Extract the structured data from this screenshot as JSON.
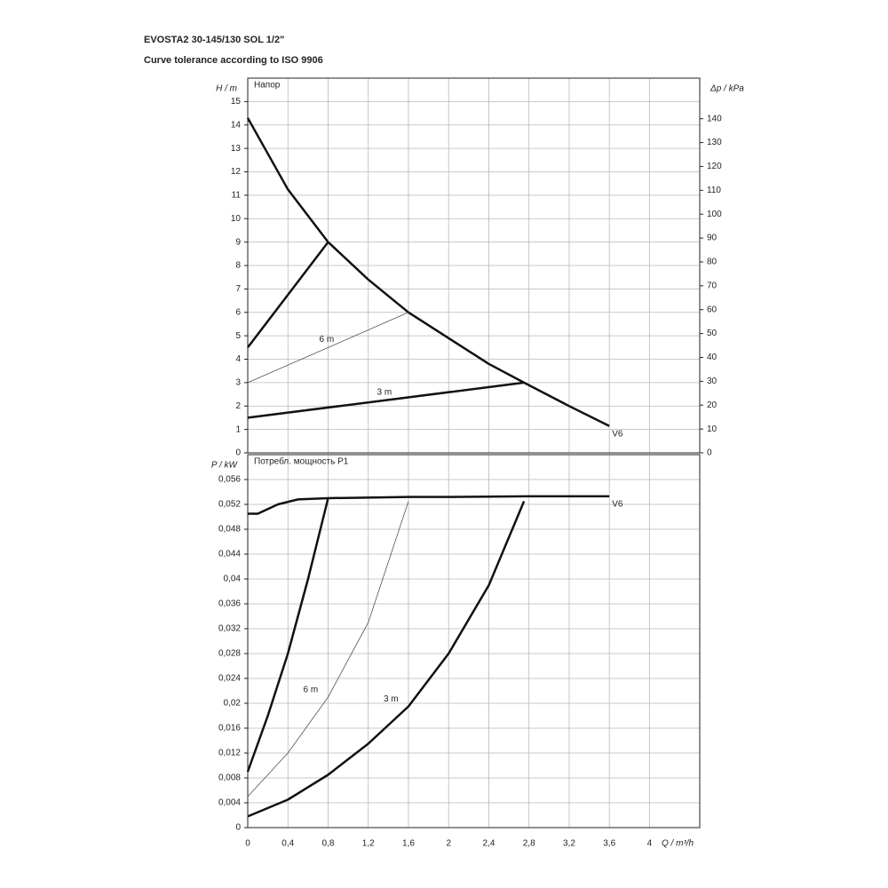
{
  "chart_data": [
    {
      "type": "line",
      "title": "EVOSTA2 30-145/130 SOL 1/2\"",
      "subtitle": "Curve tolerance according to ISO 9906",
      "panel_label": "Напор",
      "ylabel": "H / m",
      "y2label": "Δp / kPa",
      "xlim": [
        0,
        4.5
      ],
      "ylim": [
        0,
        16
      ],
      "yticks": [
        0,
        1,
        2,
        3,
        4,
        5,
        6,
        7,
        8,
        9,
        10,
        11,
        12,
        13,
        14,
        15
      ],
      "y2lim": [
        0,
        157
      ],
      "y2ticks": [
        0,
        10,
        20,
        30,
        40,
        50,
        60,
        70,
        80,
        90,
        100,
        110,
        120,
        130,
        140
      ],
      "grid": true,
      "series": [
        {
          "name": "V6",
          "color": "#111111",
          "width": 2.5,
          "x": [
            0,
            0.4,
            0.8,
            1.2,
            1.6,
            2.0,
            2.4,
            2.75,
            3.2,
            3.6
          ],
          "values": [
            14.3,
            11.25,
            9.0,
            7.4,
            6.0,
            4.9,
            3.8,
            3.0,
            2.0,
            1.15
          ]
        },
        {
          "color": "#111111",
          "width": 2.5,
          "x": [
            0,
            0.8
          ],
          "values": [
            4.5,
            9.0
          ]
        },
        {
          "name": "6 m",
          "color": "#555555",
          "width": 0.8,
          "x": [
            0,
            1.6
          ],
          "values": [
            3.0,
            6.0
          ]
        },
        {
          "name": "3 m",
          "color": "#111111",
          "width": 2.5,
          "x": [
            0,
            2.75
          ],
          "values": [
            1.5,
            3.0
          ]
        }
      ]
    },
    {
      "type": "line",
      "panel_label": "Потребл. мощность P1",
      "ylabel": "P / kW",
      "xlabel": "Q / m³/h",
      "xlim": [
        0,
        4.5
      ],
      "xticks": [
        0,
        {
          "value": 0.4,
          "label": "0,4"
        },
        {
          "value": 0.8,
          "label": "0,8"
        },
        {
          "value": 1.2,
          "label": "1,2"
        },
        {
          "value": 1.6,
          "label": "1,6"
        },
        2,
        {
          "value": 2.4,
          "label": "2,4"
        },
        {
          "value": 2.8,
          "label": "2,8"
        },
        {
          "value": 3.2,
          "label": "3,2"
        },
        {
          "value": 3.6,
          "label": "3,6"
        },
        4
      ],
      "ylim": [
        0,
        0.06
      ],
      "yticks": [
        0,
        {
          "value": 0.004,
          "label": "0,004"
        },
        {
          "value": 0.008,
          "label": "0,008"
        },
        {
          "value": 0.012,
          "label": "0,012"
        },
        {
          "value": 0.016,
          "label": "0,016"
        },
        {
          "value": 0.02,
          "label": "0,02"
        },
        {
          "value": 0.024,
          "label": "0,024"
        },
        {
          "value": 0.028,
          "label": "0,028"
        },
        {
          "value": 0.032,
          "label": "0,032"
        },
        {
          "value": 0.036,
          "label": "0,036"
        },
        {
          "value": 0.04,
          "label": "0,04"
        },
        {
          "value": 0.044,
          "label": "0,044"
        },
        {
          "value": 0.048,
          "label": "0,048"
        },
        {
          "value": 0.052,
          "label": "0,052"
        },
        {
          "value": 0.056,
          "label": "0,056"
        }
      ],
      "grid": true,
      "series": [
        {
          "name": "V6",
          "color": "#111111",
          "width": 2.5,
          "x": [
            0,
            0.1,
            0.3,
            0.5,
            0.8,
            1.6,
            2.0,
            2.8,
            3.6
          ],
          "values": [
            0.0505,
            0.0505,
            0.052,
            0.0528,
            0.053,
            0.0532,
            0.0532,
            0.0533,
            0.0533
          ]
        },
        {
          "color": "#111111",
          "width": 2.5,
          "x": [
            0,
            0.2,
            0.4,
            0.6,
            0.8
          ],
          "values": [
            0.009,
            0.018,
            0.028,
            0.04,
            0.053
          ]
        },
        {
          "name": "6 m",
          "color": "#555555",
          "width": 0.8,
          "x": [
            0,
            0.4,
            0.8,
            1.2,
            1.6
          ],
          "values": [
            0.005,
            0.012,
            0.021,
            0.033,
            0.0525
          ]
        },
        {
          "name": "3 m",
          "color": "#111111",
          "width": 2.5,
          "x": [
            0,
            0.4,
            0.8,
            1.2,
            1.6,
            2.0,
            2.4,
            2.75
          ],
          "values": [
            0.0018,
            0.0045,
            0.0085,
            0.0135,
            0.0195,
            0.028,
            0.039,
            0.0525
          ]
        }
      ]
    }
  ]
}
